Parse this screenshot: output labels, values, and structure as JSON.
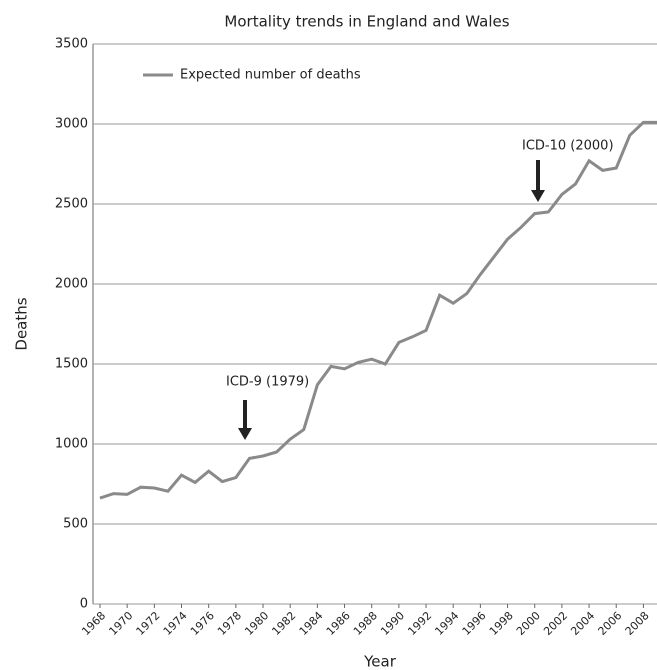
{
  "chart_data": {
    "type": "line",
    "title": "Mortality trends in England and Wales",
    "x_label": "Year",
    "y_label": "Deaths",
    "x": [
      1968,
      1969,
      1970,
      1971,
      1972,
      1973,
      1974,
      1975,
      1976,
      1977,
      1978,
      1979,
      1980,
      1981,
      1982,
      1983,
      1984,
      1985,
      1986,
      1987,
      1988,
      1989,
      1990,
      1991,
      1992,
      1993,
      1994,
      1995,
      1996,
      1997,
      1998,
      1999,
      2000,
      2001,
      2002,
      2003,
      2004,
      2005,
      2006,
      2007,
      2008,
      2009
    ],
    "series": [
      {
        "name": "Expected number of deaths",
        "color": "#8a8a8a",
        "values": [
          662,
          690,
          685,
          730,
          725,
          705,
          805,
          760,
          830,
          765,
          790,
          910,
          925,
          950,
          1030,
          1090,
          1370,
          1485,
          1470,
          1510,
          1530,
          1500,
          1635,
          1670,
          1710,
          1930,
          1880,
          1940,
          2060,
          2170,
          2280,
          2355,
          2440,
          2450,
          2560,
          2625,
          2770,
          2710,
          2725,
          2930,
          3010,
          3010
        ]
      }
    ],
    "xlim": [
      1968,
      2009
    ],
    "xticks": [
      1968,
      1970,
      1972,
      1974,
      1976,
      1978,
      1980,
      1982,
      1984,
      1986,
      1988,
      1990,
      1992,
      1994,
      1996,
      1998,
      2000,
      2002,
      2004,
      2006,
      2008
    ],
    "ylim": [
      0,
      3500
    ],
    "yticks": [
      0,
      500,
      1000,
      1500,
      2000,
      2500,
      3000,
      3500
    ],
    "grid": true,
    "annotations": [
      "ICD-9 (1979)",
      "ICD-10 (2000)"
    ]
  }
}
